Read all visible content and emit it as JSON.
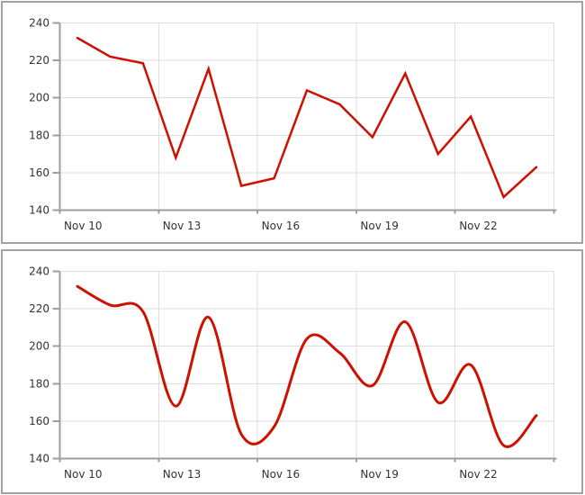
{
  "style": {
    "page_background": "#ffffff",
    "panel_background": "#ffffff",
    "panel_border_color": "#a2a2a2"
  },
  "chart_data": [
    {
      "type": "line",
      "interpolation": "linear",
      "title": "",
      "xlabel": "",
      "ylabel": "",
      "x": [
        "Nov 10",
        "Nov 11",
        "Nov 12",
        "Nov 13",
        "Nov 14",
        "Nov 15",
        "Nov 16",
        "Nov 17",
        "Nov 18",
        "Nov 19",
        "Nov 20",
        "Nov 21",
        "Nov 22",
        "Nov 23",
        "Nov 24"
      ],
      "values": [
        232,
        222,
        218.5,
        168,
        215.5,
        153,
        157,
        204,
        196.5,
        179,
        213,
        170,
        190,
        147,
        163
      ],
      "x_tick_labels": [
        "Nov 10",
        "Nov 13",
        "Nov 16",
        "Nov 19",
        "Nov 22"
      ],
      "x_tick_interval_days": 3,
      "y_tick_labels": [
        "140",
        "160",
        "180",
        "200",
        "220",
        "240"
      ],
      "ylim": [
        140,
        240
      ],
      "grid": true,
      "legend_position": "none",
      "line_color": "#cc1100",
      "line_width": 2.5,
      "grid_color": "#dedede",
      "axis_color": "#9e9e9e",
      "label_color": "#333333"
    },
    {
      "type": "line",
      "interpolation": "smooth-spline",
      "title": "",
      "xlabel": "",
      "ylabel": "",
      "x": [
        "Nov 10",
        "Nov 11",
        "Nov 12",
        "Nov 13",
        "Nov 14",
        "Nov 15",
        "Nov 16",
        "Nov 17",
        "Nov 18",
        "Nov 19",
        "Nov 20",
        "Nov 21",
        "Nov 22",
        "Nov 23",
        "Nov 24"
      ],
      "values": [
        232,
        222,
        218.5,
        168,
        215.5,
        153,
        157,
        204,
        196.5,
        179,
        213,
        170,
        190,
        147,
        163
      ],
      "x_tick_labels": [
        "Nov 10",
        "Nov 13",
        "Nov 16",
        "Nov 19",
        "Nov 22"
      ],
      "x_tick_interval_days": 3,
      "y_tick_labels": [
        "140",
        "160",
        "180",
        "200",
        "220",
        "240"
      ],
      "ylim": [
        140,
        240
      ],
      "grid": true,
      "legend_position": "none",
      "line_color": "#cc1100",
      "line_width": 3,
      "grid_color": "#dedede",
      "axis_color": "#9e9e9e",
      "label_color": "#333333"
    }
  ]
}
